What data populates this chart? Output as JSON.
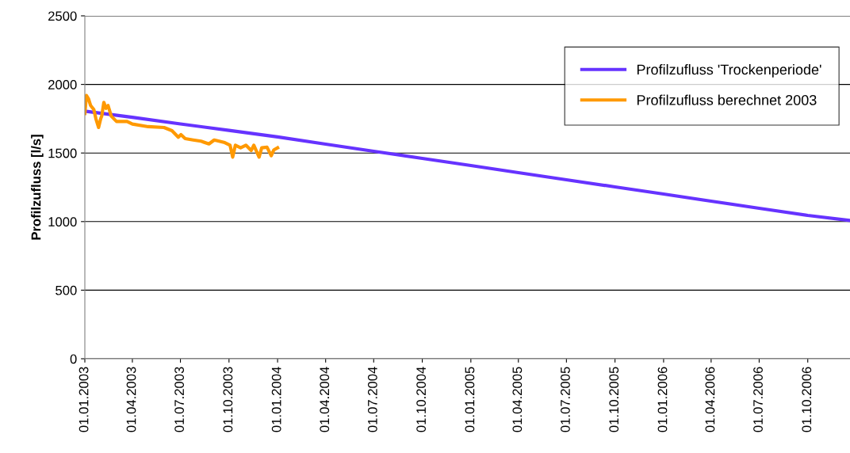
{
  "chart_data": {
    "type": "line",
    "ylabel": "Profilzufluss [l/s]",
    "xlim": [
      "2003-01-01",
      "2006-12-20"
    ],
    "xticks": [
      {
        "value": "2003-01-01",
        "label": "01.01.2003"
      },
      {
        "value": "2003-04-01",
        "label": "01.04.2003"
      },
      {
        "value": "2003-07-01",
        "label": "01.07.2003"
      },
      {
        "value": "2003-10-01",
        "label": "01.10.2003"
      },
      {
        "value": "2004-01-01",
        "label": "01.01.2004"
      },
      {
        "value": "2004-04-01",
        "label": "01.04.2004"
      },
      {
        "value": "2004-07-01",
        "label": "01.07.2004"
      },
      {
        "value": "2004-10-01",
        "label": "01.10.2004"
      },
      {
        "value": "2005-01-01",
        "label": "01.01.2005"
      },
      {
        "value": "2005-04-01",
        "label": "01.04.2005"
      },
      {
        "value": "2005-07-01",
        "label": "01.07.2005"
      },
      {
        "value": "2005-10-01",
        "label": "01.10.2005"
      },
      {
        "value": "2006-01-01",
        "label": "01.01.2006"
      },
      {
        "value": "2006-04-01",
        "label": "01.04.2006"
      },
      {
        "value": "2006-07-01",
        "label": "01.07.2006"
      },
      {
        "value": "2006-10-01",
        "label": "01.10.2006"
      }
    ],
    "ylim": [
      0,
      2500
    ],
    "yticks": [
      0,
      500,
      1000,
      1500,
      2000,
      2500
    ],
    "grid": "y",
    "legend": "top right",
    "marker": "none",
    "line_style": "solid",
    "series": [
      {
        "name": "Profilzufluss 'Trockenperiode'",
        "color": "#6633ff",
        "x": [
          "2003-01-01",
          "2003-04-01",
          "2003-07-01",
          "2003-10-01",
          "2004-01-01",
          "2004-04-01",
          "2004-07-01",
          "2004-10-01",
          "2005-01-01",
          "2005-04-01",
          "2005-07-01",
          "2005-10-01",
          "2006-01-01",
          "2006-04-01",
          "2006-07-01",
          "2006-10-01",
          "2006-12-20"
        ],
        "values": [
          1805,
          1760,
          1712,
          1665,
          1617,
          1565,
          1513,
          1461,
          1409,
          1357,
          1305,
          1253,
          1201,
          1149,
          1097,
          1045,
          1008
        ]
      },
      {
        "name": "Profilzufluss berechnet 2003",
        "color": "#ff9900",
        "x": [
          "2003-01-01",
          "2003-01-04",
          "2003-01-08",
          "2003-01-12",
          "2003-01-18",
          "2003-01-22",
          "2003-01-27",
          "2003-01-31",
          "2003-02-02",
          "2003-02-06",
          "2003-02-10",
          "2003-02-14",
          "2003-02-20",
          "2003-03-02",
          "2003-03-22",
          "2003-04-01",
          "2003-05-01",
          "2003-05-31",
          "2003-06-15",
          "2003-06-27",
          "2003-07-02",
          "2003-07-10",
          "2003-07-25",
          "2003-08-09",
          "2003-08-24",
          "2003-09-03",
          "2003-09-23",
          "2003-10-03",
          "2003-10-08",
          "2003-10-13",
          "2003-10-23",
          "2003-11-02",
          "2003-11-12",
          "2003-11-17",
          "2003-11-27",
          "2003-12-02",
          "2003-12-12",
          "2003-12-20",
          "2003-12-25",
          "2004-01-01"
        ],
        "values": [
          1788,
          1919,
          1894,
          1846,
          1817,
          1749,
          1686,
          1749,
          1769,
          1869,
          1826,
          1846,
          1769,
          1730,
          1730,
          1711,
          1692,
          1686,
          1663,
          1615,
          1634,
          1605,
          1595,
          1586,
          1566,
          1595,
          1576,
          1557,
          1470,
          1557,
          1538,
          1557,
          1518,
          1557,
          1470,
          1538,
          1542,
          1480,
          1523,
          1538
        ]
      }
    ]
  }
}
